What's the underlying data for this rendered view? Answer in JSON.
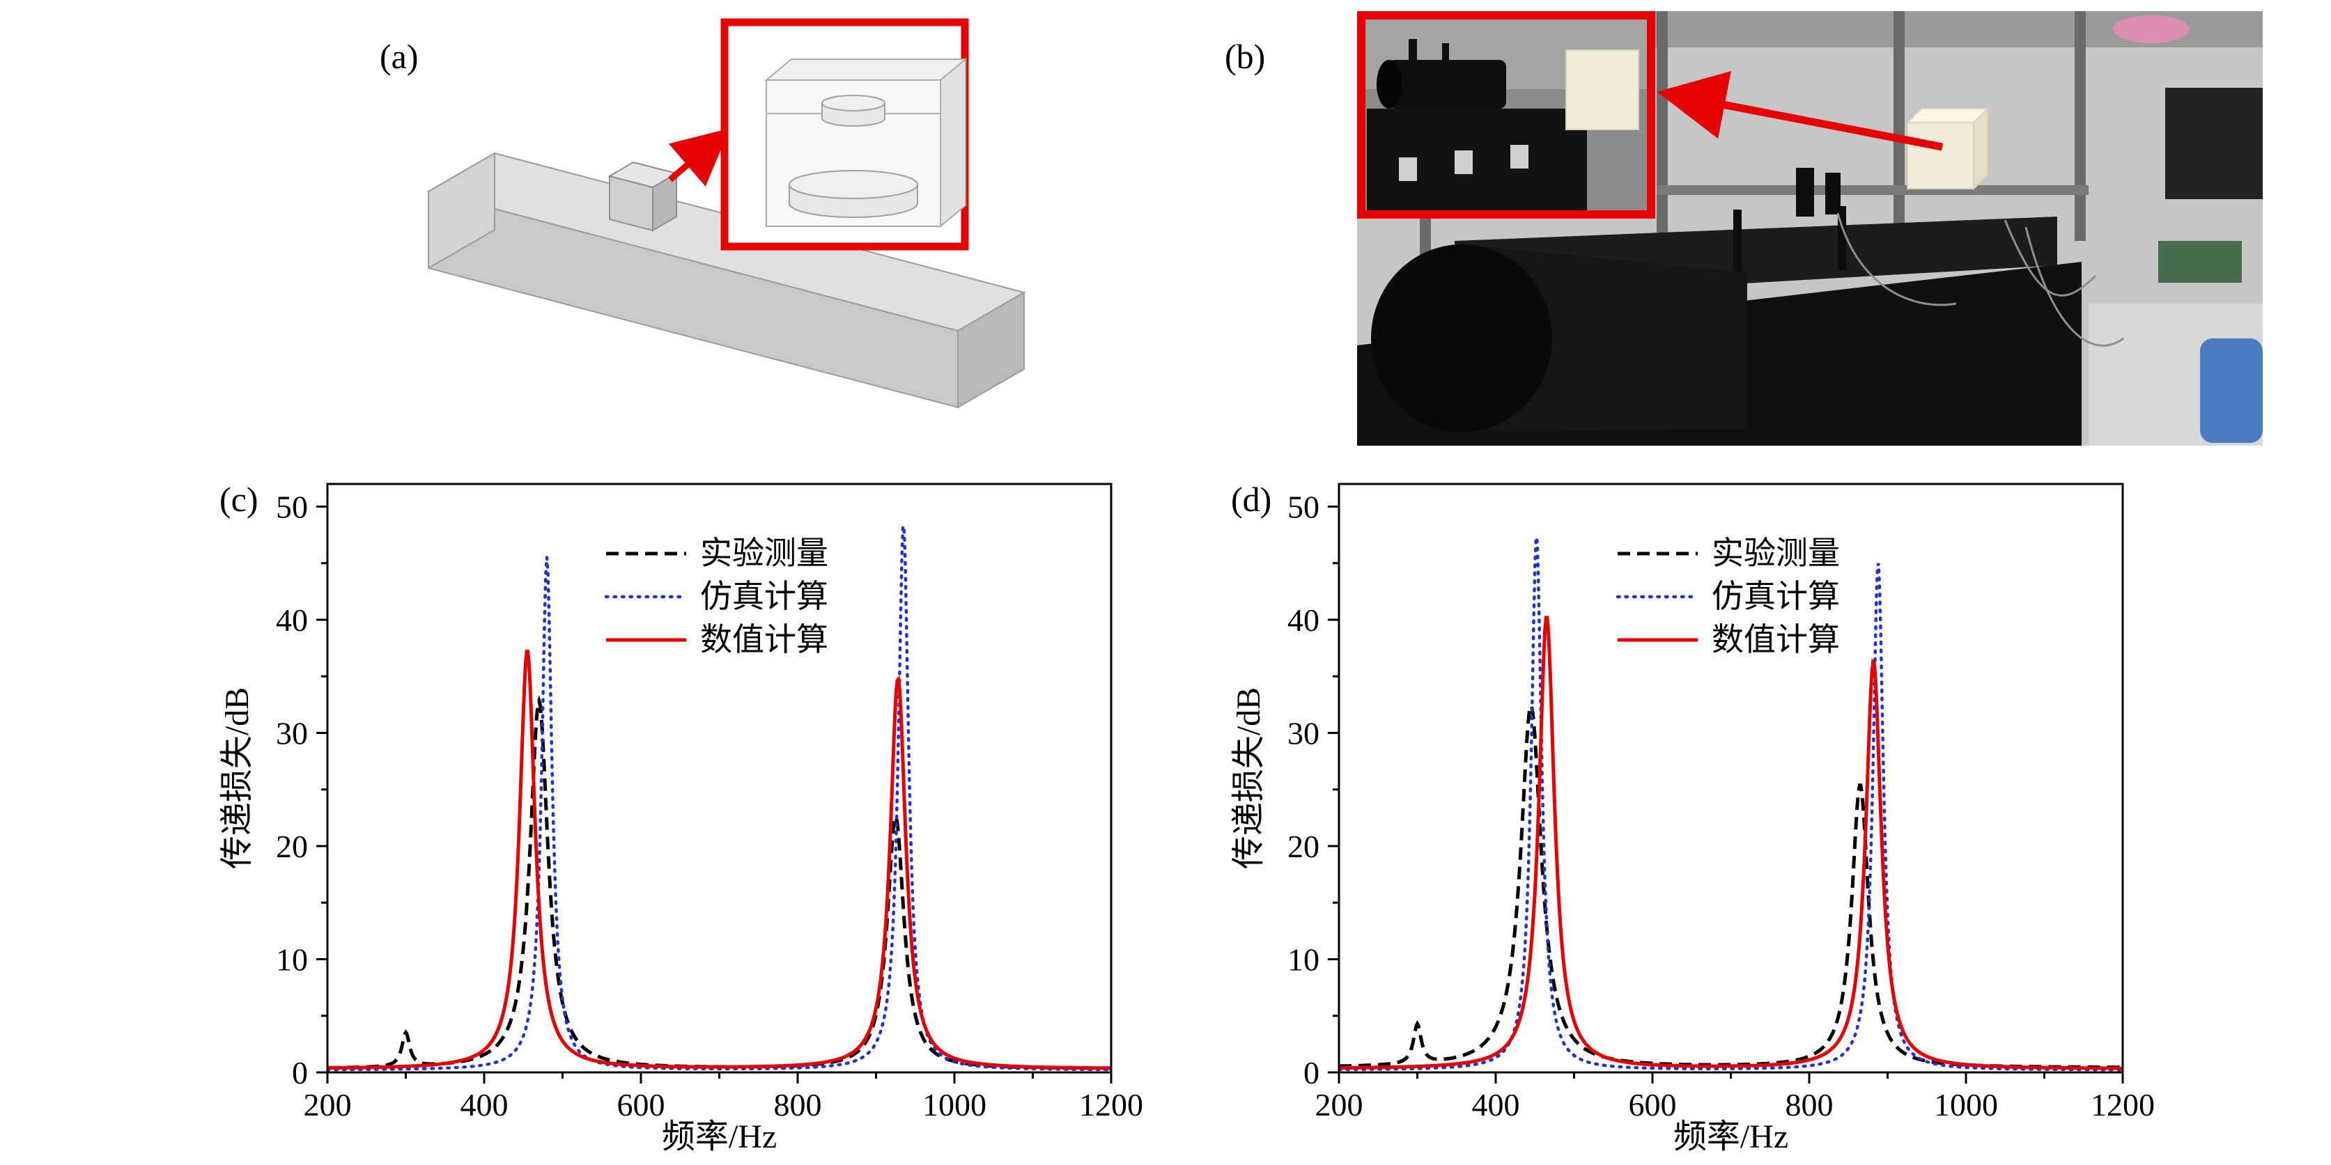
{
  "colors": {
    "accent": "#e60000",
    "experiment": "#000000",
    "simulation": "#2233cc",
    "numerical": "#e60000",
    "frame": "#000000"
  },
  "panels": {
    "a": {
      "label": "(a)"
    },
    "b": {
      "label": "(b)"
    },
    "c": {
      "label": "(c)"
    },
    "d": {
      "label": "(d)"
    }
  },
  "legend": {
    "items": [
      "实验测量",
      "仿真计算",
      "数值计算"
    ]
  },
  "axis": {
    "xlabel": "频率/Hz",
    "ylabel": "传递损失/dB"
  },
  "chart_data": [
    {
      "id": "c",
      "type": "line",
      "title": "",
      "xlabel": "频率/Hz",
      "ylabel": "传递损失/dB",
      "xlim": [
        200,
        1200
      ],
      "ylim": [
        0,
        52
      ],
      "xticks": [
        200,
        400,
        600,
        800,
        1000,
        1200
      ],
      "yticks": [
        0,
        10,
        20,
        30,
        40,
        50
      ],
      "grid": false,
      "legend_position": "top-center",
      "series": [
        {
          "name": "实验测量",
          "color": "#000000",
          "line": "dashed",
          "baseline": 0.3,
          "peaks": [
            {
              "center": 300,
              "height": 3.0,
              "width": 6
            },
            {
              "center": 470,
              "height": 32.5,
              "width": 14
            },
            {
              "center": 925,
              "height": 22.3,
              "width": 13
            }
          ]
        },
        {
          "name": "仿真计算",
          "color": "#2233cc",
          "line": "dotted",
          "baseline": 0.2,
          "peaks": [
            {
              "center": 480,
              "height": 45.3,
              "width": 8
            },
            {
              "center": 935,
              "height": 48.4,
              "width": 8
            }
          ]
        },
        {
          "name": "数值计算",
          "color": "#e60000",
          "line": "solid",
          "baseline": 0.3,
          "peaks": [
            {
              "center": 455,
              "height": 37.0,
              "width": 12
            },
            {
              "center": 928,
              "height": 34.5,
              "width": 12
            }
          ]
        }
      ]
    },
    {
      "id": "d",
      "type": "line",
      "title": "",
      "xlabel": "频率/Hz",
      "ylabel": "传递损失/dB",
      "xlim": [
        200,
        1200
      ],
      "ylim": [
        0,
        52
      ],
      "xticks": [
        200,
        400,
        600,
        800,
        1000,
        1200
      ],
      "yticks": [
        0,
        10,
        20,
        30,
        40,
        50
      ],
      "grid": false,
      "legend_position": "top-center",
      "series": [
        {
          "name": "实验测量",
          "color": "#000000",
          "line": "dashed",
          "baseline": 0.4,
          "peaks": [
            {
              "center": 300,
              "height": 3.5,
              "width": 6
            },
            {
              "center": 445,
              "height": 32.0,
              "width": 16
            },
            {
              "center": 865,
              "height": 25.0,
              "width": 13
            }
          ]
        },
        {
          "name": "仿真计算",
          "color": "#2233cc",
          "line": "dotted",
          "baseline": 0.2,
          "peaks": [
            {
              "center": 452,
              "height": 47.3,
              "width": 8
            },
            {
              "center": 888,
              "height": 45.0,
              "width": 8
            }
          ]
        },
        {
          "name": "数值计算",
          "color": "#e60000",
          "line": "solid",
          "baseline": 0.3,
          "peaks": [
            {
              "center": 465,
              "height": 40.0,
              "width": 12
            },
            {
              "center": 882,
              "height": 36.0,
              "width": 12
            }
          ]
        }
      ]
    }
  ]
}
